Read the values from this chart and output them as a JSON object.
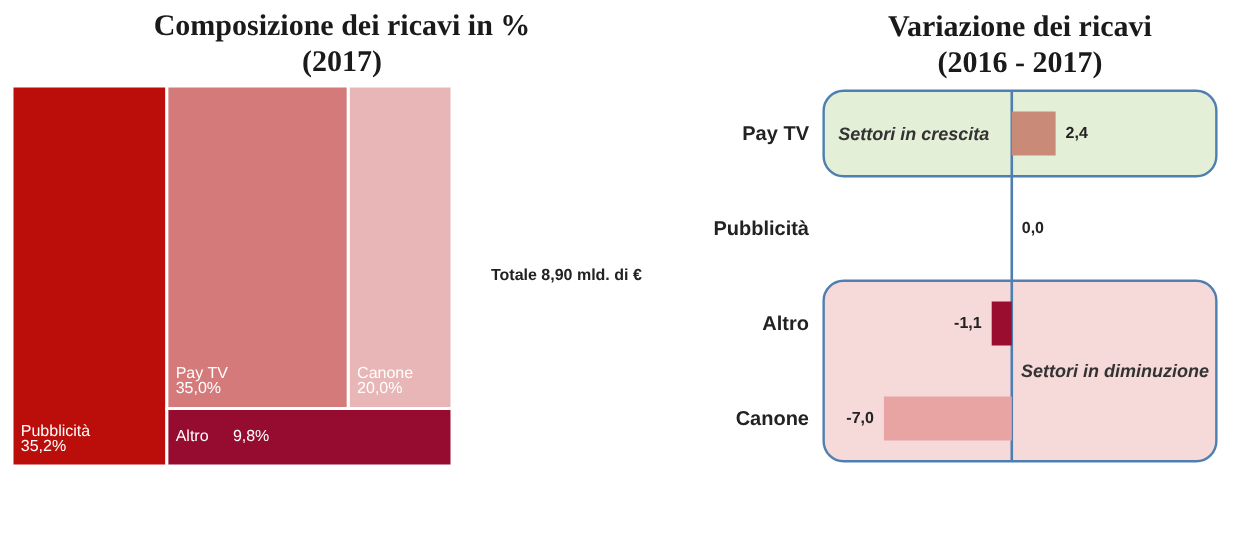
{
  "chart_data": [
    {
      "type": "other",
      "title": "Composizione dei ricavi in %",
      "subtitle": "(2017)",
      "categories": [
        "Pubblicità",
        "Pay TV",
        "Canone",
        "Altro"
      ],
      "values": [
        35.2,
        35.0,
        20.0,
        9.8
      ],
      "value_labels": [
        "35,2%",
        "35,0%",
        "20,0%",
        "9,8%"
      ],
      "colors": [
        "#bb0d0a",
        "#d57a7a",
        "#e8b6b6",
        "#960b30"
      ],
      "annotations": [
        "Totale 8,90 mld. di €"
      ]
    },
    {
      "type": "bar",
      "orientation": "horizontal",
      "title": "Variazione dei ricavi",
      "subtitle": "(2016 - 2017)",
      "categories": [
        "Pay TV",
        "Pubblicità",
        "Altro",
        "Canone"
      ],
      "values": [
        2.4,
        0.0,
        -1.1,
        -7.0
      ],
      "value_labels": [
        "2,4",
        "0,0",
        "-1,1",
        "-7,0"
      ],
      "colors": [
        "#c98a78",
        "#c98a78",
        "#9b0d2e",
        "#e8a3a3"
      ],
      "ref_lines": [
        {
          "axis": "x",
          "value": 0,
          "color": "#4f7fb0"
        }
      ],
      "bands": [
        {
          "axis": "y",
          "from": "Pay TV",
          "to": "Pay TV",
          "label": "Settori in crescita",
          "color": "#e4efd7"
        },
        {
          "axis": "y",
          "from": "Altro",
          "to": "Canone",
          "label": "Settori in diminuzione",
          "color": "#f6d9d9"
        }
      ]
    }
  ]
}
